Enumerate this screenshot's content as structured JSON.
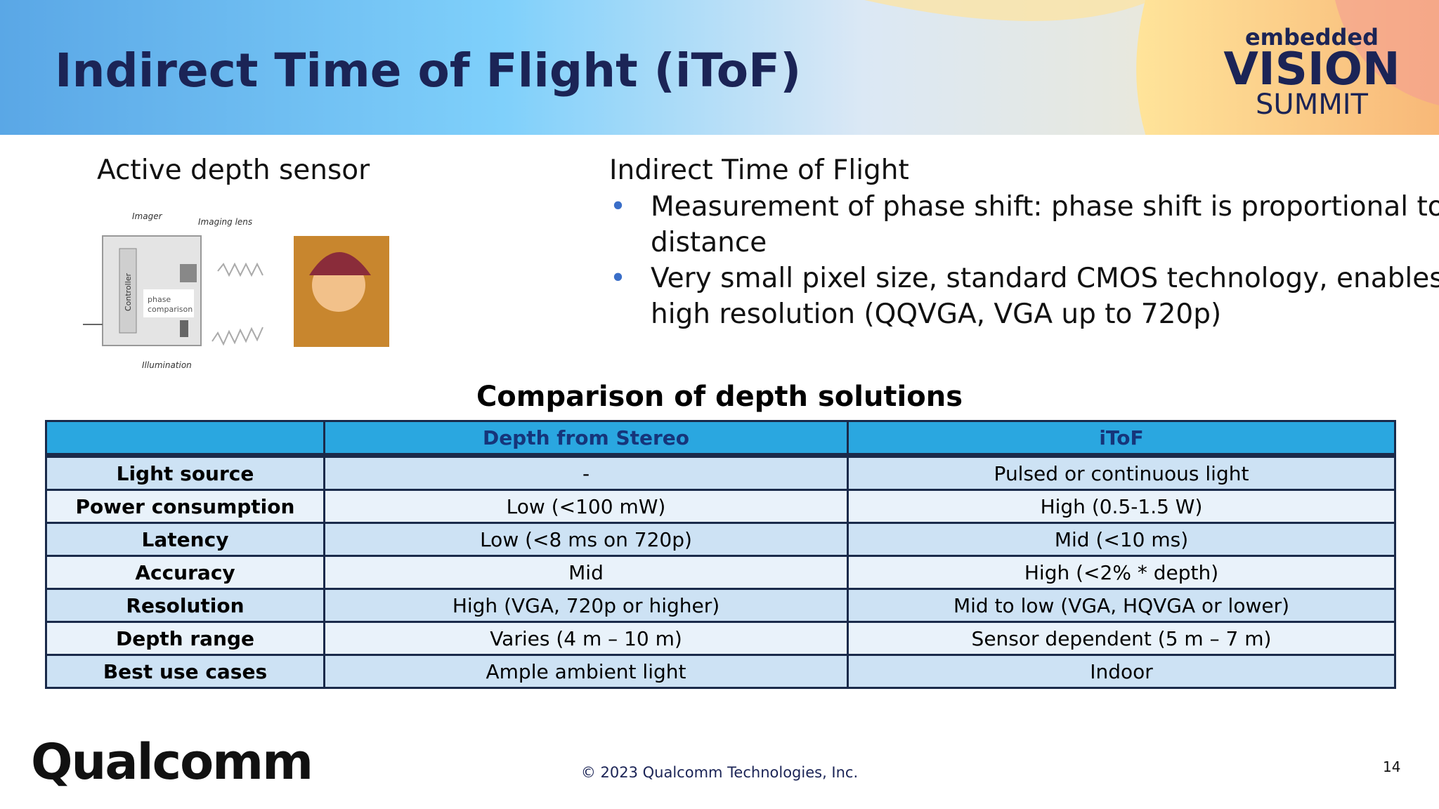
{
  "header": {
    "title": "Indirect Time of Flight (iToF)",
    "logo": {
      "top": "embedded",
      "middle": "VISION",
      "bottom": "SUMMIT"
    }
  },
  "left": {
    "heading": "Active depth sensor",
    "diagram": {
      "imager": "Imager",
      "lens": "Imaging lens",
      "controller": "Controller",
      "phase": "phase",
      "comparison": "comparison",
      "illumination": "Illumination"
    }
  },
  "right": {
    "heading": "Indirect Time of Flight",
    "bullets": [
      [
        "Measurement of phase shift: phase shift is proportional to",
        "distance"
      ],
      [
        "Very small pixel size, standard CMOS technology, enables",
        "high resolution (QQVGA, VGA up to 720p)"
      ]
    ]
  },
  "table": {
    "title": "Comparison of depth solutions",
    "columns": [
      "Depth from Stereo",
      "iToF"
    ],
    "rows": [
      [
        "Light source",
        "-",
        "Pulsed or continuous light"
      ],
      [
        "Power consumption",
        "Low (<100 mW)",
        "High (0.5-1.5 W)"
      ],
      [
        "Latency",
        "Low (<8 ms on 720p)",
        "Mid (<10 ms)"
      ],
      [
        "Accuracy",
        "Mid",
        "High (<2% * depth)"
      ],
      [
        "Resolution",
        "High (VGA, 720p or higher)",
        "Mid to low (VGA, HQVGA or lower)"
      ],
      [
        "Depth range",
        "Varies (4 m – 10 m)",
        "Sensor dependent (5 m – 7 m)"
      ],
      [
        "Best use cases",
        "Ample ambient light",
        "Indoor"
      ]
    ]
  },
  "footer": {
    "brand": "Qualcomm",
    "copyright": "© 2023 Qualcomm Technologies, Inc.",
    "page": "14"
  }
}
